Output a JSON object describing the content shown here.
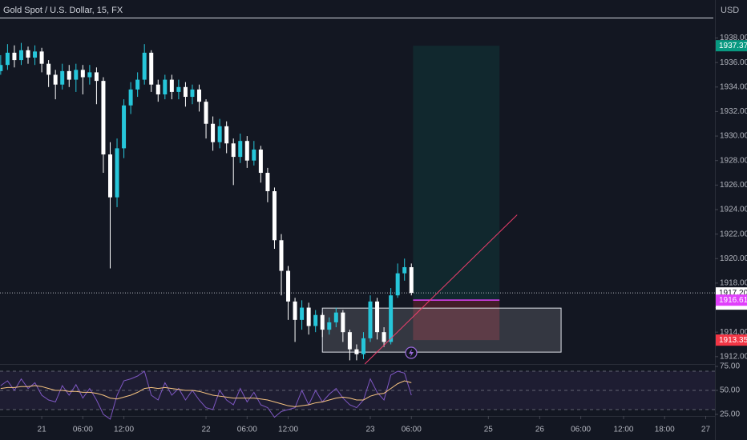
{
  "header": {
    "title": "Gold Spot / U.S. Dollar, 15, FX",
    "currency": "USD"
  },
  "chart_data": [
    {
      "type": "candlestick",
      "x": [
        -24,
        -20,
        -16,
        -12,
        -8,
        -4,
        0,
        4,
        8,
        12,
        16,
        20,
        24,
        28,
        32,
        36,
        40,
        44,
        48,
        52,
        56,
        60,
        64,
        68,
        72,
        76,
        80,
        84,
        88,
        92,
        96,
        100,
        104,
        108,
        112,
        116,
        120,
        124,
        128,
        132,
        136,
        140,
        144,
        148,
        152,
        156,
        160,
        164,
        168,
        172,
        176,
        180,
        184,
        188,
        192,
        196,
        200,
        204,
        208,
        212,
        216
      ],
      "open": [
        1935.3,
        1935.8,
        1936.8,
        1936.2,
        1937.0,
        1936.4,
        1936.9,
        1935.9,
        1935.0,
        1934.2,
        1935.3,
        1934.6,
        1935.4,
        1934.8,
        1935.2,
        1934.5,
        1928.5,
        1925.0,
        1929.0,
        1932.5,
        1933.8,
        1934.6,
        1936.8,
        1934.2,
        1933.4,
        1934.6,
        1933.6,
        1934.0,
        1933.2,
        1933.8,
        1932.8,
        1931.0,
        1929.5,
        1930.8,
        1929.4,
        1928.3,
        1929.6,
        1928.0,
        1928.9,
        1927.0,
        1925.5,
        1921.5,
        1919.0,
        1916.5,
        1915.0,
        1916.0,
        1914.5,
        1915.4,
        1914.2,
        1914.8,
        1915.6,
        1914.0,
        1912.6,
        1912.2,
        1913.5,
        1916.5,
        1914.0,
        1913.2,
        1917.0,
        1918.8,
        1919.3
      ],
      "high": [
        1936.6,
        1937.5,
        1937.4,
        1937.6,
        1937.3,
        1937.4,
        1937.2,
        1936.2,
        1935.4,
        1935.9,
        1935.8,
        1935.9,
        1935.8,
        1935.8,
        1935.6,
        1934.8,
        1929.5,
        1929.8,
        1933.0,
        1934.4,
        1935.2,
        1937.5,
        1937.0,
        1934.6,
        1935.0,
        1935.0,
        1934.6,
        1934.4,
        1934.2,
        1934.2,
        1933.0,
        1931.6,
        1931.4,
        1931.2,
        1929.8,
        1930.2,
        1930.0,
        1929.6,
        1929.2,
        1927.4,
        1925.8,
        1922.0,
        1919.4,
        1916.8,
        1916.6,
        1916.4,
        1915.8,
        1915.6,
        1915.2,
        1916.0,
        1915.8,
        1914.2,
        1913.0,
        1914.0,
        1917.0,
        1916.8,
        1914.4,
        1917.6,
        1919.6,
        1920.0,
        1919.6
      ],
      "low": [
        1935.0,
        1935.4,
        1935.6,
        1935.8,
        1935.9,
        1935.8,
        1935.2,
        1934.0,
        1933.0,
        1933.8,
        1934.0,
        1933.6,
        1933.4,
        1934.2,
        1932.6,
        1927.0,
        1919.2,
        1924.2,
        1928.2,
        1931.8,
        1933.2,
        1934.2,
        1933.6,
        1932.8,
        1933.0,
        1933.0,
        1933.0,
        1932.4,
        1932.6,
        1932.0,
        1929.8,
        1928.8,
        1929.0,
        1928.6,
        1926.0,
        1927.8,
        1927.4,
        1927.6,
        1926.2,
        1924.6,
        1920.8,
        1917.0,
        1915.0,
        1913.2,
        1914.2,
        1913.8,
        1914.0,
        1913.6,
        1913.8,
        1914.4,
        1913.2,
        1911.7,
        1911.7,
        1911.8,
        1913.2,
        1913.4,
        1912.8,
        1913.0,
        1916.8,
        1918.2,
        1917.0
      ],
      "close": [
        1935.8,
        1936.8,
        1936.2,
        1937.0,
        1936.4,
        1936.9,
        1935.9,
        1935.0,
        1934.2,
        1935.3,
        1934.6,
        1935.4,
        1934.8,
        1935.2,
        1934.5,
        1928.5,
        1925.0,
        1929.0,
        1932.5,
        1933.8,
        1934.6,
        1936.8,
        1934.2,
        1933.4,
        1934.6,
        1933.6,
        1934.0,
        1933.2,
        1933.8,
        1932.8,
        1931.0,
        1929.5,
        1930.8,
        1929.4,
        1928.3,
        1929.6,
        1928.0,
        1928.9,
        1927.0,
        1925.5,
        1921.5,
        1919.0,
        1916.5,
        1915.0,
        1916.0,
        1914.5,
        1915.4,
        1914.2,
        1914.8,
        1915.6,
        1914.0,
        1912.6,
        1912.2,
        1913.5,
        1916.5,
        1914.0,
        1913.2,
        1917.0,
        1918.8,
        1919.3,
        1917.2
      ],
      "up_color": "#26c6da",
      "down_color": "#ffffff",
      "xlim": [
        -24.4,
        393.4
      ],
      "ylim": [
        1911.4,
        1939.6
      ],
      "xticks": [
        {
          "value": 0,
          "label": "21"
        },
        {
          "value": 24,
          "label": "06:00"
        },
        {
          "value": 48,
          "label": "12:00"
        },
        {
          "value": 96,
          "label": "22"
        },
        {
          "value": 120,
          "label": "06:00"
        },
        {
          "value": 144,
          "label": "12:00"
        },
        {
          "value": 192,
          "label": "23"
        },
        {
          "value": 216,
          "label": "06:00"
        },
        {
          "value": 261,
          "label": "25"
        },
        {
          "value": 291,
          "label": "26"
        },
        {
          "value": 315,
          "label": "06:00"
        },
        {
          "value": 340,
          "label": "12:00"
        },
        {
          "value": 364,
          "label": "18:00"
        },
        {
          "value": 388,
          "label": "27"
        }
      ],
      "yticks": [
        {
          "value": 1912,
          "label": "1912.00"
        },
        {
          "value": 1914,
          "label": "1914.00"
        },
        {
          "value": 1916,
          "label": "1916.00"
        },
        {
          "value": 1918,
          "label": "1918.00"
        },
        {
          "value": 1920,
          "label": "1920.00"
        },
        {
          "value": 1922,
          "label": "1922.00"
        },
        {
          "value": 1924,
          "label": "1924.00"
        },
        {
          "value": 1926,
          "label": "1926.00"
        },
        {
          "value": 1928,
          "label": "1928.00"
        },
        {
          "value": 1930,
          "label": "1930.00"
        },
        {
          "value": 1932,
          "label": "1932.00"
        },
        {
          "value": 1934,
          "label": "1934.00"
        },
        {
          "value": 1936,
          "label": "1936.00"
        },
        {
          "value": 1938,
          "label": "1938.00"
        }
      ],
      "price_labels": [
        {
          "value": 1937.37,
          "label": "1937.37",
          "color": "#089981"
        },
        {
          "value": 1917.2,
          "label": "1917.20",
          "color": "#ffffff"
        },
        {
          "value": 1916.61,
          "label": "1916.61",
          "color": "#e040fb"
        },
        {
          "value": 1913.35,
          "label": "1913.35",
          "color": "#f23645"
        }
      ],
      "countdown": "08:46",
      "drawings": {
        "position": {
          "x": [
            217,
            267.5
          ]
        },
        "rectangle": {
          "x": [
            164,
            303.5
          ],
          "y": [
            1912.37,
            1915.96
          ]
        },
        "trendline": {
          "x": [
            188.8,
            277.8
          ],
          "y": [
            1911.4,
            1923.57
          ],
          "color": "#f23f6e"
        }
      }
    },
    {
      "type": "line",
      "ylim": [
        23.3,
        76.7
      ],
      "yticks": [
        {
          "value": 75,
          "label": "75.00"
        },
        {
          "value": 50,
          "label": "50.00"
        },
        {
          "value": 25,
          "label": "25.00"
        }
      ],
      "hlines": [
        70,
        50,
        30
      ],
      "series": [
        {
          "color": "#7e57c2",
          "values": [
            55,
            60,
            50,
            62,
            52,
            58,
            45,
            40,
            38,
            55,
            45,
            56,
            42,
            52,
            40,
            25,
            20,
            45,
            60,
            62,
            65,
            70,
            45,
            40,
            58,
            45,
            52,
            40,
            50,
            40,
            32,
            30,
            50,
            40,
            35,
            52,
            38,
            48,
            35,
            32,
            22,
            28,
            30,
            32,
            50,
            35,
            50,
            38,
            46,
            52,
            42,
            35,
            32,
            40,
            62,
            48,
            40,
            66,
            70,
            68,
            45
          ]
        },
        {
          "color": "#f7c480",
          "values": [
            52,
            53,
            53,
            54,
            54,
            55,
            54,
            52,
            50,
            50,
            49,
            49,
            48,
            48,
            47,
            45,
            42,
            41,
            43,
            45,
            48,
            52,
            53,
            52,
            53,
            52,
            51,
            50,
            50,
            49,
            47,
            45,
            44,
            43,
            42,
            42,
            42,
            42,
            41,
            40,
            38,
            36,
            34,
            33,
            34,
            35,
            37,
            38,
            40,
            42,
            43,
            42,
            40,
            40,
            44,
            46,
            47,
            52,
            57,
            60,
            58
          ]
        }
      ]
    }
  ]
}
